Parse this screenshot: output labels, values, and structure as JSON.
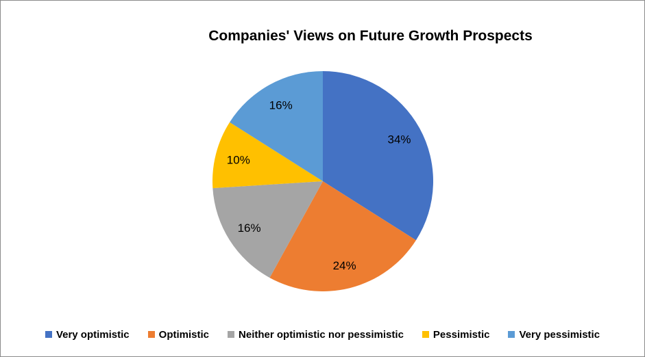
{
  "window": {
    "background_color": "#ffffff",
    "border_color": "#8a8a8a"
  },
  "chart_data": {
    "type": "pie",
    "title": "Companies' Views on Future Growth Prospects",
    "start_angle_deg": 0,
    "direction": "clockwise",
    "legend_position": "bottom",
    "label_color": "#000000",
    "slices": [
      {
        "label": "Very optimistic",
        "value": 34,
        "display": "34%",
        "color": "#4472C4"
      },
      {
        "label": "Optimistic",
        "value": 24,
        "display": "24%",
        "color": "#ED7D31"
      },
      {
        "label": "Neither optimistic nor pessimistic",
        "value": 16,
        "display": "16%",
        "color": "#A5A5A5"
      },
      {
        "label": "Pessimistic",
        "value": 10,
        "display": "10%",
        "color": "#FFC000"
      },
      {
        "label": "Very pessimistic",
        "value": 16,
        "display": "16%",
        "color": "#5B9BD5"
      }
    ]
  }
}
